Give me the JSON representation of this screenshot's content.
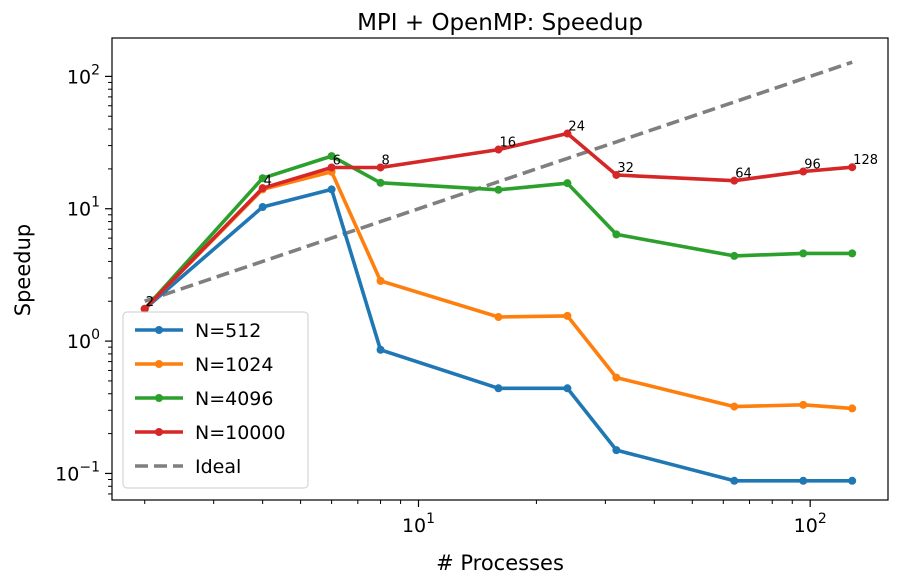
{
  "chart_data": {
    "type": "line",
    "title": "MPI + OpenMP: Speedup",
    "xlabel": "# Processes",
    "ylabel": "Speedup",
    "xscale": "log",
    "yscale": "log",
    "xlim": [
      1.65,
      158
    ],
    "ylim": [
      0.063,
      195
    ],
    "x_major_ticks": [
      {
        "value": 10,
        "base": "10",
        "exp": "1"
      },
      {
        "value": 100,
        "base": "10",
        "exp": "2"
      }
    ],
    "y_major_ticks": [
      {
        "value": 0.1,
        "base": "10",
        "exp": "−1"
      },
      {
        "value": 1,
        "base": "10",
        "exp": "0"
      },
      {
        "value": 10,
        "base": "10",
        "exp": "1"
      },
      {
        "value": 100,
        "base": "10",
        "exp": "2"
      }
    ],
    "x": [
      2,
      4,
      6,
      8,
      16,
      24,
      32,
      64,
      96,
      128
    ],
    "point_labels": [
      "2",
      "4",
      "6",
      "8",
      "16",
      "24",
      "32",
      "64",
      "96",
      "128"
    ],
    "series": [
      {
        "name": "N=512",
        "color": "#1f77b4",
        "style": "solid-marker",
        "values": [
          1.75,
          10.3,
          14.0,
          0.86,
          0.44,
          0.44,
          0.15,
          0.088,
          0.088,
          0.088
        ]
      },
      {
        "name": "N=1024",
        "color": "#ff7f0e",
        "style": "solid-marker",
        "values": [
          1.75,
          14.0,
          19.0,
          2.85,
          1.52,
          1.55,
          0.53,
          0.32,
          0.33,
          0.31
        ]
      },
      {
        "name": "N=4096",
        "color": "#2ca02c",
        "style": "solid-marker",
        "values": [
          1.75,
          17.0,
          25.0,
          15.7,
          13.9,
          15.6,
          6.4,
          4.4,
          4.6,
          4.6
        ]
      },
      {
        "name": "N=10000",
        "color": "#d62728",
        "style": "solid-marker",
        "values": [
          1.75,
          14.3,
          20.5,
          20.5,
          28.0,
          37.0,
          18.0,
          16.3,
          19.1,
          20.6
        ]
      },
      {
        "name": "Ideal",
        "color": "#7f7f7f",
        "style": "dashed",
        "values": [
          2,
          4,
          6,
          8,
          16,
          24,
          32,
          64,
          96,
          128
        ]
      }
    ],
    "labeled_series": "N=10000",
    "legend_position": "lower-left",
    "grid": false
  }
}
